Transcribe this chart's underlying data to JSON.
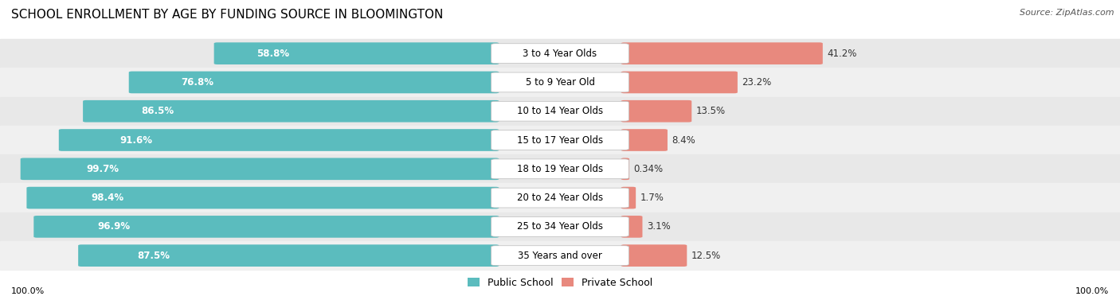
{
  "title": "SCHOOL ENROLLMENT BY AGE BY FUNDING SOURCE IN BLOOMINGTON",
  "source": "Source: ZipAtlas.com",
  "categories": [
    "3 to 4 Year Olds",
    "5 to 9 Year Old",
    "10 to 14 Year Olds",
    "15 to 17 Year Olds",
    "18 to 19 Year Olds",
    "20 to 24 Year Olds",
    "25 to 34 Year Olds",
    "35 Years and over"
  ],
  "public_values": [
    58.8,
    76.8,
    86.5,
    91.6,
    99.7,
    98.4,
    96.9,
    87.5
  ],
  "private_values": [
    41.2,
    23.2,
    13.5,
    8.4,
    0.34,
    1.7,
    3.1,
    12.5
  ],
  "public_labels": [
    "58.8%",
    "76.8%",
    "86.5%",
    "91.6%",
    "99.7%",
    "98.4%",
    "96.9%",
    "87.5%"
  ],
  "private_labels": [
    "41.2%",
    "23.2%",
    "13.5%",
    "8.4%",
    "0.34%",
    "1.7%",
    "3.1%",
    "12.5%"
  ],
  "public_color": "#5bbcbe",
  "private_color": "#e8897e",
  "row_bg_colors": [
    "#e8e8e8",
    "#f0f0f0"
  ],
  "bar_max": 100,
  "left_axis_label": "100.0%",
  "right_axis_label": "100.0%",
  "legend_public": "Public School",
  "legend_private": "Private School",
  "title_fontsize": 11,
  "source_fontsize": 8,
  "bar_label_fontsize": 8.5,
  "category_fontsize": 8.5,
  "legend_fontsize": 9,
  "axis_label_fontsize": 8
}
